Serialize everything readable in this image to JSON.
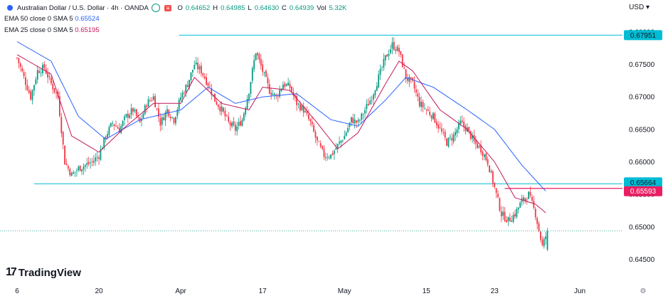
{
  "header": {
    "title": "Australian Dollar / U.S. Dollar · 4h · OANDA",
    "open_label": "O",
    "open": "0.64652",
    "high_label": "H",
    "high": "0.64985",
    "low_label": "L",
    "low": "0.64630",
    "close_label": "C",
    "close": "0.64939",
    "vol_label": "Vol",
    "vol": "5.32K",
    "ema50_label": "EMA 50 close 0 SMA 5",
    "ema50_value": "0.65524",
    "ema25_label": "EMA 25 close 0 SMA 5",
    "ema25_value": "0.65195"
  },
  "currency": "USD",
  "brand": "TradingView",
  "colors": {
    "up": "#089981",
    "down": "#f23645",
    "ema50": "#2962ff",
    "ema25": "#c2185b",
    "hline": "#00bcd4",
    "last": "#e91e63"
  },
  "chart_data": {
    "type": "candlestick",
    "symbol": "AUDUSD",
    "ylim": [
      0.642,
      0.6825
    ],
    "y_ticks": [
      "0.68000",
      "0.67500",
      "0.67000",
      "0.66500",
      "0.66000",
      "0.65500",
      "0.65000",
      "0.64500"
    ],
    "x_ticks": [
      "6",
      "20",
      "Apr",
      "17",
      "May",
      "15",
      "23",
      "Jun"
    ],
    "horizontal_lines": [
      {
        "value": 0.67951,
        "label": "0.67951"
      },
      {
        "value": 0.65664,
        "label": "0.65664"
      },
      {
        "value": 0.65593,
        "label": "0.65593"
      }
    ],
    "close_path": [
      [
        0,
        0.676
      ],
      [
        4,
        0.673
      ],
      [
        8,
        0.67
      ],
      [
        12,
        0.674
      ],
      [
        16,
        0.6745
      ],
      [
        20,
        0.672
      ],
      [
        24,
        0.67
      ],
      [
        28,
        0.66
      ],
      [
        32,
        0.658
      ],
      [
        36,
        0.659
      ],
      [
        40,
        0.6595
      ],
      [
        44,
        0.66
      ],
      [
        48,
        0.661
      ],
      [
        52,
        0.664
      ],
      [
        56,
        0.666
      ],
      [
        60,
        0.665
      ],
      [
        64,
        0.667
      ],
      [
        68,
        0.668
      ],
      [
        72,
        0.666
      ],
      [
        76,
        0.669
      ],
      [
        80,
        0.67
      ],
      [
        84,
        0.666
      ],
      [
        88,
        0.668
      ],
      [
        92,
        0.6665
      ],
      [
        96,
        0.67
      ],
      [
        100,
        0.672
      ],
      [
        104,
        0.675
      ],
      [
        108,
        0.674
      ],
      [
        112,
        0.672
      ],
      [
        116,
        0.6695
      ],
      [
        120,
        0.668
      ],
      [
        124,
        0.666
      ],
      [
        128,
        0.665
      ],
      [
        132,
        0.6665
      ],
      [
        136,
        0.671
      ],
      [
        140,
        0.677
      ],
      [
        144,
        0.674
      ],
      [
        148,
        0.671
      ],
      [
        152,
        0.67
      ],
      [
        156,
        0.672
      ],
      [
        160,
        0.6715
      ],
      [
        164,
        0.669
      ],
      [
        168,
        0.668
      ],
      [
        172,
        0.666
      ],
      [
        176,
        0.663
      ],
      [
        180,
        0.661
      ],
      [
        184,
        0.661
      ],
      [
        188,
        0.6625
      ],
      [
        192,
        0.664
      ],
      [
        196,
        0.6665
      ],
      [
        200,
        0.666
      ],
      [
        204,
        0.668
      ],
      [
        208,
        0.67
      ],
      [
        212,
        0.673
      ],
      [
        216,
        0.676
      ],
      [
        220,
        0.678
      ],
      [
        224,
        0.677
      ],
      [
        228,
        0.673
      ],
      [
        232,
        0.672
      ],
      [
        236,
        0.669
      ],
      [
        240,
        0.668
      ],
      [
        244,
        0.667
      ],
      [
        248,
        0.665
      ],
      [
        252,
        0.663
      ],
      [
        256,
        0.664
      ],
      [
        260,
        0.666
      ],
      [
        264,
        0.665
      ],
      [
        268,
        0.663
      ],
      [
        272,
        0.662
      ],
      [
        276,
        0.66
      ],
      [
        280,
        0.656
      ],
      [
        284,
        0.652
      ],
      [
        288,
        0.651
      ],
      [
        292,
        0.652
      ],
      [
        296,
        0.654
      ],
      [
        300,
        0.655
      ],
      [
        304,
        0.652
      ],
      [
        308,
        0.647
      ],
      [
        311,
        0.6494
      ]
    ],
    "ema25_path": [
      [
        0,
        0.6765
      ],
      [
        20,
        0.6735
      ],
      [
        32,
        0.664
      ],
      [
        48,
        0.6615
      ],
      [
        64,
        0.6655
      ],
      [
        80,
        0.669
      ],
      [
        96,
        0.669
      ],
      [
        104,
        0.673
      ],
      [
        120,
        0.669
      ],
      [
        136,
        0.668
      ],
      [
        144,
        0.6715
      ],
      [
        160,
        0.671
      ],
      [
        176,
        0.666
      ],
      [
        188,
        0.662
      ],
      [
        200,
        0.6645
      ],
      [
        216,
        0.672
      ],
      [
        224,
        0.6755
      ],
      [
        232,
        0.674
      ],
      [
        248,
        0.668
      ],
      [
        264,
        0.665
      ],
      [
        280,
        0.66
      ],
      [
        292,
        0.6545
      ],
      [
        304,
        0.6535
      ],
      [
        311,
        0.65195
      ]
    ],
    "ema50_path": [
      [
        0,
        0.6785
      ],
      [
        20,
        0.6755
      ],
      [
        36,
        0.667
      ],
      [
        52,
        0.6635
      ],
      [
        72,
        0.6665
      ],
      [
        96,
        0.668
      ],
      [
        112,
        0.6715
      ],
      [
        128,
        0.669
      ],
      [
        144,
        0.67
      ],
      [
        164,
        0.6705
      ],
      [
        184,
        0.6665
      ],
      [
        200,
        0.6655
      ],
      [
        216,
        0.6695
      ],
      [
        228,
        0.673
      ],
      [
        244,
        0.6715
      ],
      [
        264,
        0.668
      ],
      [
        280,
        0.665
      ],
      [
        296,
        0.6595
      ],
      [
        311,
        0.65524
      ]
    ]
  }
}
